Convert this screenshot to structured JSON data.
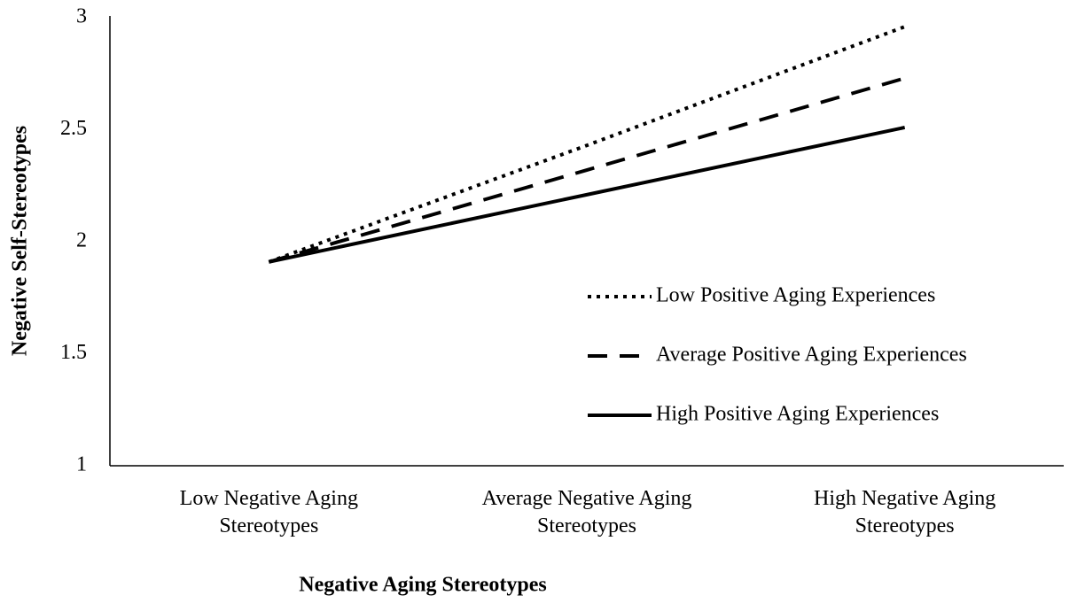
{
  "chart_data": {
    "type": "line",
    "xlabel": "Negative Aging Stereotypes",
    "ylabel": "Negative Self-Stereotypes",
    "categories": [
      "Low Negative Aging Stereotypes",
      "Average Negative Aging Stereotypes",
      "High Negative Aging Stereotypes"
    ],
    "series": [
      {
        "name": "Low Positive Aging Experiences",
        "color": "#000000",
        "dash": "dotted",
        "values": [
          1.91,
          2.43,
          2.96
        ]
      },
      {
        "name": "Average Positive Aging Experiences",
        "color": "#000000",
        "dash": "dashed",
        "values": [
          1.91,
          2.32,
          2.73
        ]
      },
      {
        "name": "High Positive Aging Experiences",
        "color": "#000000",
        "dash": "solid",
        "values": [
          1.91,
          2.21,
          2.51
        ]
      }
    ],
    "ylim": [
      1,
      3
    ],
    "yticks": [
      1,
      1.5,
      2,
      2.5,
      3
    ],
    "grid": false,
    "legend": "right"
  }
}
